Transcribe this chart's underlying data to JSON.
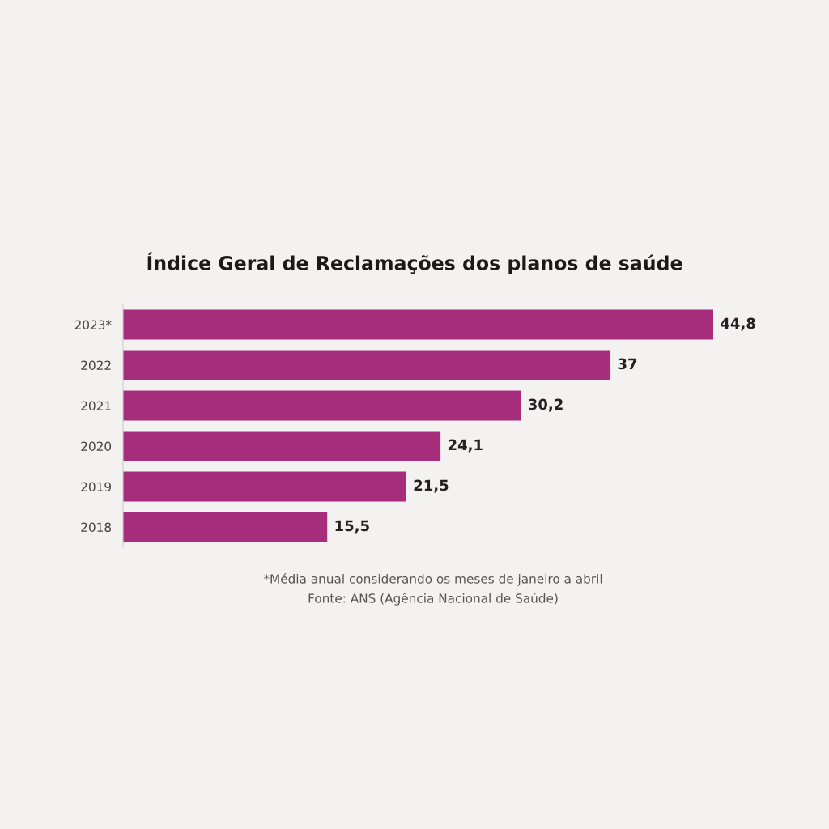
{
  "chart_data": {
    "type": "bar",
    "orientation": "horizontal",
    "title": "Índice Geral de Reclamações dos planos de saúde",
    "categories": [
      "2023*",
      "2022",
      "2021",
      "2020",
      "2019",
      "2018"
    ],
    "values": [
      44.8,
      37,
      30.2,
      24.1,
      21.5,
      15.5
    ],
    "value_labels": [
      "44,8",
      "37",
      "30,2",
      "24,1",
      "21,5",
      "15,5"
    ],
    "color": "#a62d7c",
    "grid": false,
    "legend": false,
    "annotations": [
      "*Média anual considerando os meses de janeiro a abril",
      "Fonte: ANS (Agência Nacional de Saúde)"
    ]
  }
}
